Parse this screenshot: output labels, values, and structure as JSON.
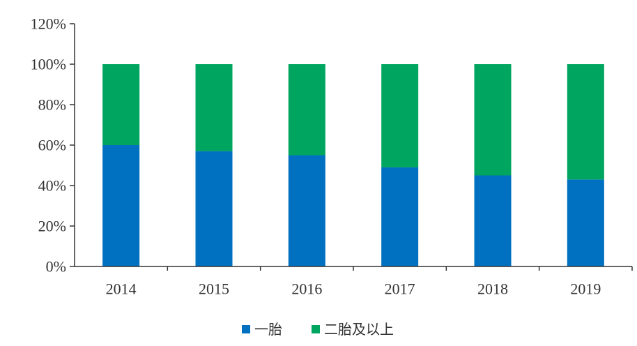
{
  "chart_data": {
    "type": "bar",
    "stacked": true,
    "categories": [
      "2014",
      "2015",
      "2016",
      "2017",
      "2018",
      "2019"
    ],
    "series": [
      {
        "name": "一胎",
        "color": "#0070C0",
        "values": [
          60,
          57,
          55,
          49,
          45,
          43
        ]
      },
      {
        "name": "二胎及以上",
        "color": "#00A65F",
        "values": [
          40,
          43,
          45,
          51,
          55,
          57
        ]
      }
    ],
    "ylim": [
      0,
      120
    ],
    "yticks": [
      0,
      20,
      40,
      60,
      80,
      100,
      120
    ],
    "ytick_labels": [
      "0%",
      "20%",
      "40%",
      "60%",
      "80%",
      "100%",
      "120%"
    ],
    "grid": false,
    "legend": "bottom-center"
  }
}
